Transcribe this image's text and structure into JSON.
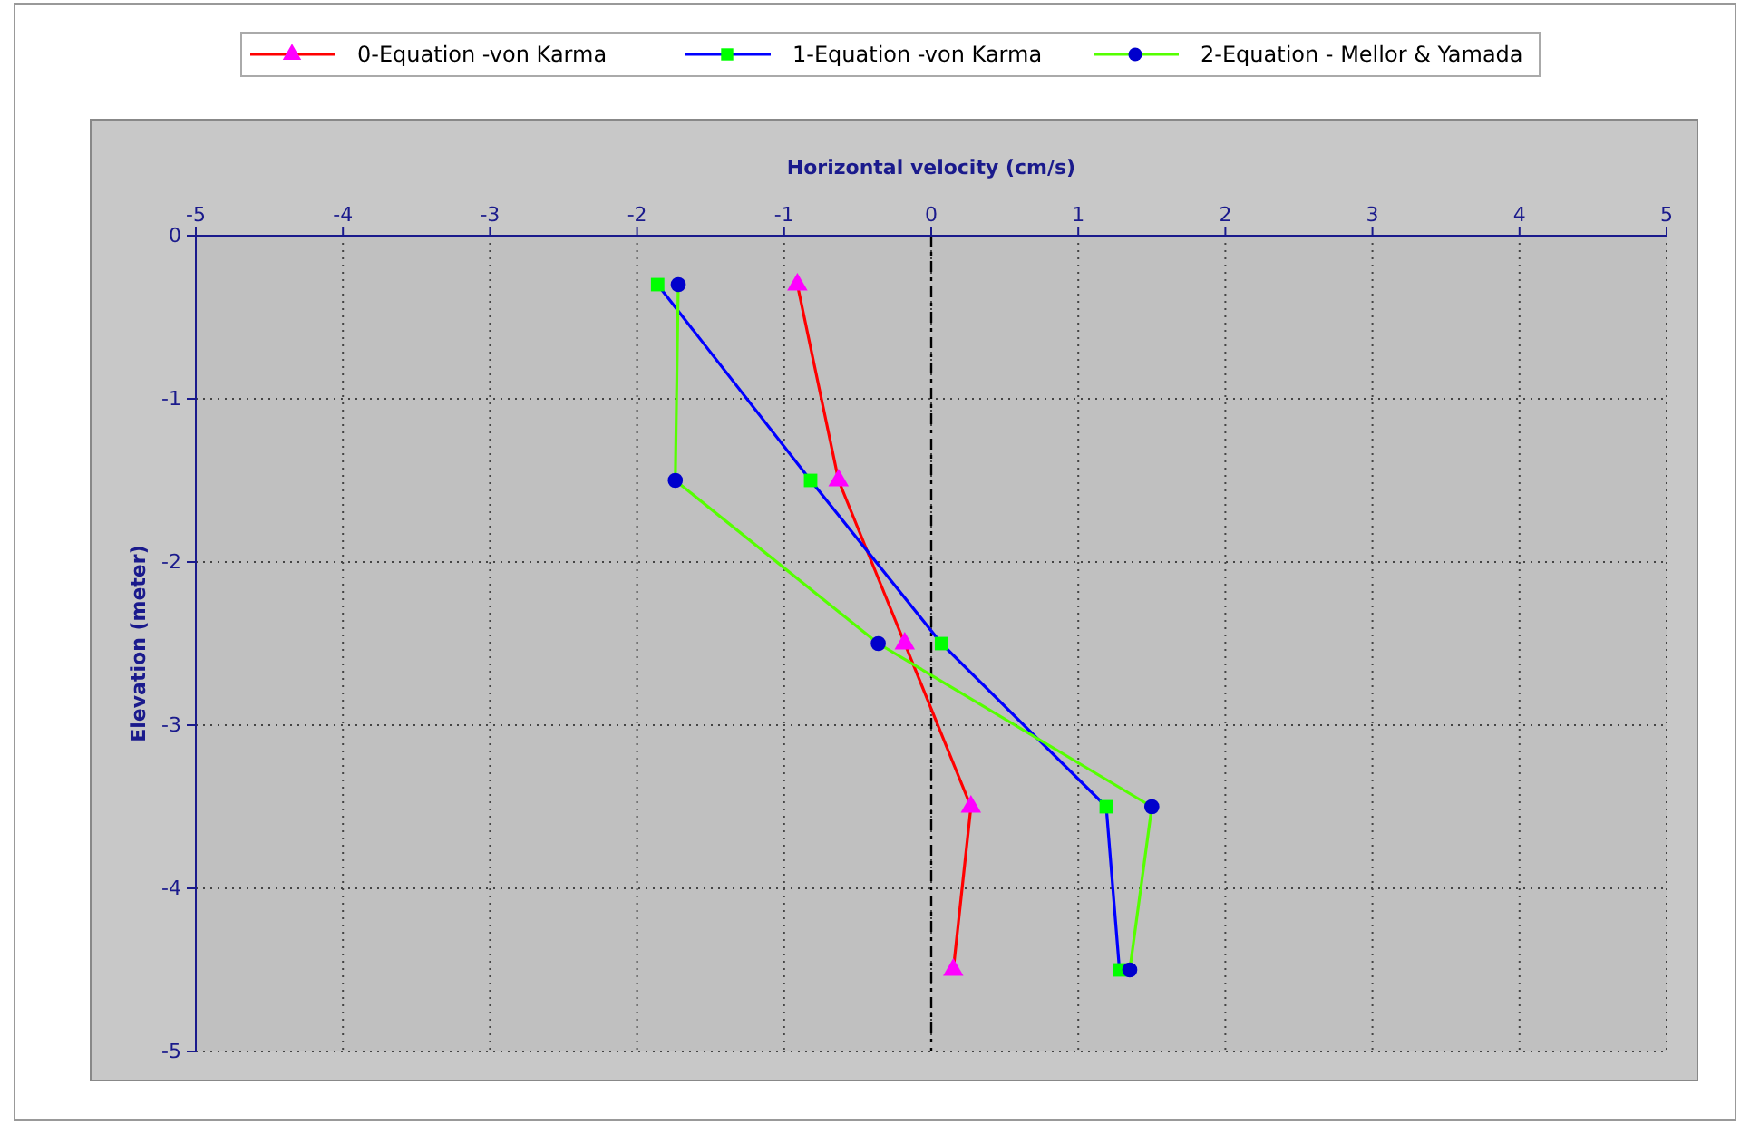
{
  "chart_data": {
    "type": "line",
    "xlabel": "Horizontal velocity (cm/s)",
    "ylabel": "Elevation (meter)",
    "xlim": [
      -5,
      5
    ],
    "xticks": [
      -5,
      -4,
      -3,
      -2,
      -1,
      0,
      1,
      2,
      3,
      4,
      5
    ],
    "ylim": [
      -5,
      0
    ],
    "yticks": [
      -5,
      -4,
      -3,
      -2,
      -1,
      0
    ],
    "grid": true,
    "legend": "top",
    "line_style": "solid",
    "ref_lines": [
      {
        "axis": "x",
        "value": 0,
        "color": "#000000",
        "line_style": "dashed"
      }
    ],
    "series": [
      {
        "name": "0-Equation -von Karma",
        "color": "#ff0000",
        "marker": "triangle",
        "colors": [
          "#ff00ff",
          "#ff00ff",
          "#ff00ff",
          "#ff00ff",
          "#ff00ff"
        ],
        "x": [
          -0.91,
          -0.63,
          -0.18,
          0.27,
          0.15
        ],
        "values": [
          -0.3,
          -1.5,
          -2.5,
          -3.5,
          -4.5
        ]
      },
      {
        "name": "1-Equation -von Karma",
        "color": "#0000ff",
        "marker": "square",
        "colors": [
          "#00ff00",
          "#00ff00",
          "#00ff00",
          "#00ff00",
          "#00ff00"
        ],
        "x": [
          -1.86,
          -0.82,
          0.07,
          1.19,
          1.28
        ],
        "values": [
          -0.3,
          -1.5,
          -2.5,
          -3.5,
          -4.5
        ]
      },
      {
        "name": "2-Equation - Mellor & Yamada",
        "color": "#55ff00",
        "marker": "circle",
        "colors": [
          "#0000cc",
          "#0000cc",
          "#0000cc",
          "#0000cc",
          "#0000cc"
        ],
        "x": [
          -1.72,
          -1.74,
          -0.36,
          1.5,
          1.35
        ],
        "values": [
          -0.3,
          -1.5,
          -2.5,
          -3.5,
          -4.5
        ]
      }
    ]
  }
}
